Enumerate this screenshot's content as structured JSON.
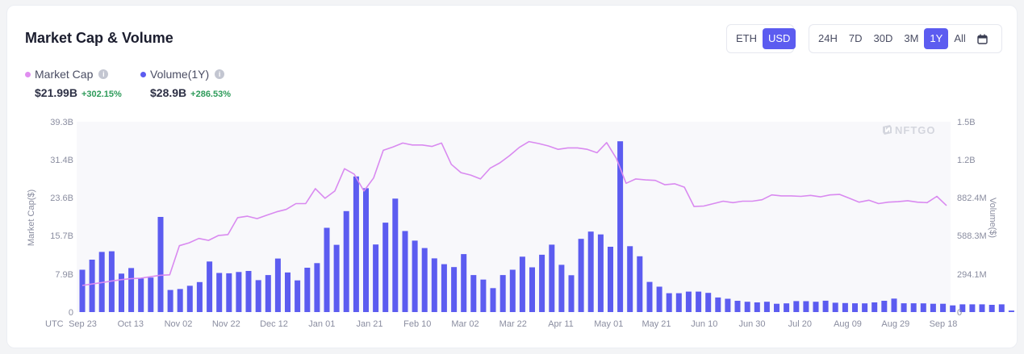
{
  "header": {
    "title": "Market Cap & Volume",
    "currency_options": [
      "ETH",
      "USD"
    ],
    "currency_selected": "USD",
    "range_options": [
      "24H",
      "7D",
      "30D",
      "3M",
      "1Y",
      "All"
    ],
    "range_selected": "1Y",
    "calendar_icon": "calendar-icon"
  },
  "legend": {
    "market_cap": {
      "label": "Market Cap",
      "value": "$21.99B",
      "change": "+302.15%",
      "color": "#e08ef0"
    },
    "volume": {
      "label": "Volume(1Y)",
      "value": "$28.9B",
      "change": "+286.53%",
      "color": "#5c5cf0"
    }
  },
  "watermark": "NFTGO",
  "colors": {
    "accent": "#5c5cf0",
    "positive": "#2e9b5a",
    "line": "#d98af0",
    "bar": "#5c5cf0"
  },
  "chart_data": {
    "type": "bar+line",
    "x_axis_label": "UTC",
    "x_tick_labels": [
      "Sep 23",
      "Oct 13",
      "Nov 02",
      "Nov 22",
      "Dec 12",
      "Jan 01",
      "Jan 21",
      "Feb 10",
      "Mar 02",
      "Mar 22",
      "Apr 11",
      "May 01",
      "May 21",
      "Jun 10",
      "Jun 30",
      "Jul 20",
      "Aug 09",
      "Aug 29",
      "Sep 18"
    ],
    "ylabel_left": "Market Cap($)",
    "ylabel_right": "Volume($)",
    "y_left_ticks": [
      "39.3B",
      "31.4B",
      "23.6B",
      "15.7B",
      "7.9B",
      "0"
    ],
    "y_right_ticks": [
      "1.5B",
      "1.2B",
      "882.4M",
      "588.3M",
      "294.1M",
      "0"
    ],
    "ylim_left_billions": [
      0,
      39.3
    ],
    "ylim_right_millions": [
      0,
      1470.6
    ],
    "grid": false,
    "series": [
      {
        "name": "Volume(1Y)",
        "kind": "bar",
        "axis": "right",
        "unit": "M USD",
        "values": [
          327,
          405,
          465,
          470,
          297,
          340,
          260,
          267,
          735,
          171,
          178,
          203,
          232,
          391,
          302,
          300,
          310,
          318,
          247,
          286,
          414,
          306,
          245,
          343,
          378,
          651,
          520,
          780,
          1048,
          957,
          522,
          691,
          877,
          626,
          552,
          495,
          415,
          370,
          348,
          448,
          286,
          251,
          185,
          286,
          327,
          428,
          346,
          443,
          521,
          365,
          285,
          566,
          622,
          600,
          505,
          1320,
          509,
          431,
          233,
          196,
          146,
          146,
          158,
          158,
          148,
          113,
          103,
          87,
          80,
          75,
          80,
          64,
          67,
          85,
          84,
          80,
          88,
          72,
          70,
          68,
          67,
          75,
          87,
          104,
          68,
          68,
          67,
          64,
          64,
          52,
          60,
          60,
          60,
          56,
          60,
          12
        ]
      },
      {
        "name": "Market Cap",
        "kind": "line",
        "axis": "left",
        "unit": "B USD",
        "values": [
          5.5,
          5.8,
          6.1,
          6.4,
          6.7,
          6.9,
          7.0,
          7.3,
          7.6,
          7.7,
          13.7,
          14.3,
          15.2,
          14.8,
          15.8,
          16.0,
          19.5,
          19.8,
          19.3,
          20.0,
          20.7,
          21.2,
          22.4,
          22.4,
          25.5,
          23.5,
          25.0,
          29.6,
          28.5,
          25.0,
          27.7,
          33.4,
          34.1,
          34.9,
          34.5,
          34.5,
          34.2,
          34.9,
          30.5,
          28.8,
          28.3,
          27.5,
          29.7,
          30.8,
          32.3,
          34.0,
          35.2,
          34.8,
          34.3,
          33.6,
          33.9,
          33.9,
          33.6,
          32.9,
          35.0,
          31.7,
          26.6,
          27.5,
          27.3,
          27.2,
          26.3,
          26.5,
          25.8,
          21.8,
          21.9,
          22.4,
          22.9,
          22.6,
          22.9,
          22.9,
          23.2,
          24.2,
          24.0,
          24.0,
          23.9,
          24.1,
          23.8,
          24.2,
          24.3,
          23.5,
          22.7,
          23.1,
          22.4,
          22.7,
          22.8,
          23.0,
          22.7,
          22.6,
          23.9,
          22.0
        ]
      }
    ]
  }
}
